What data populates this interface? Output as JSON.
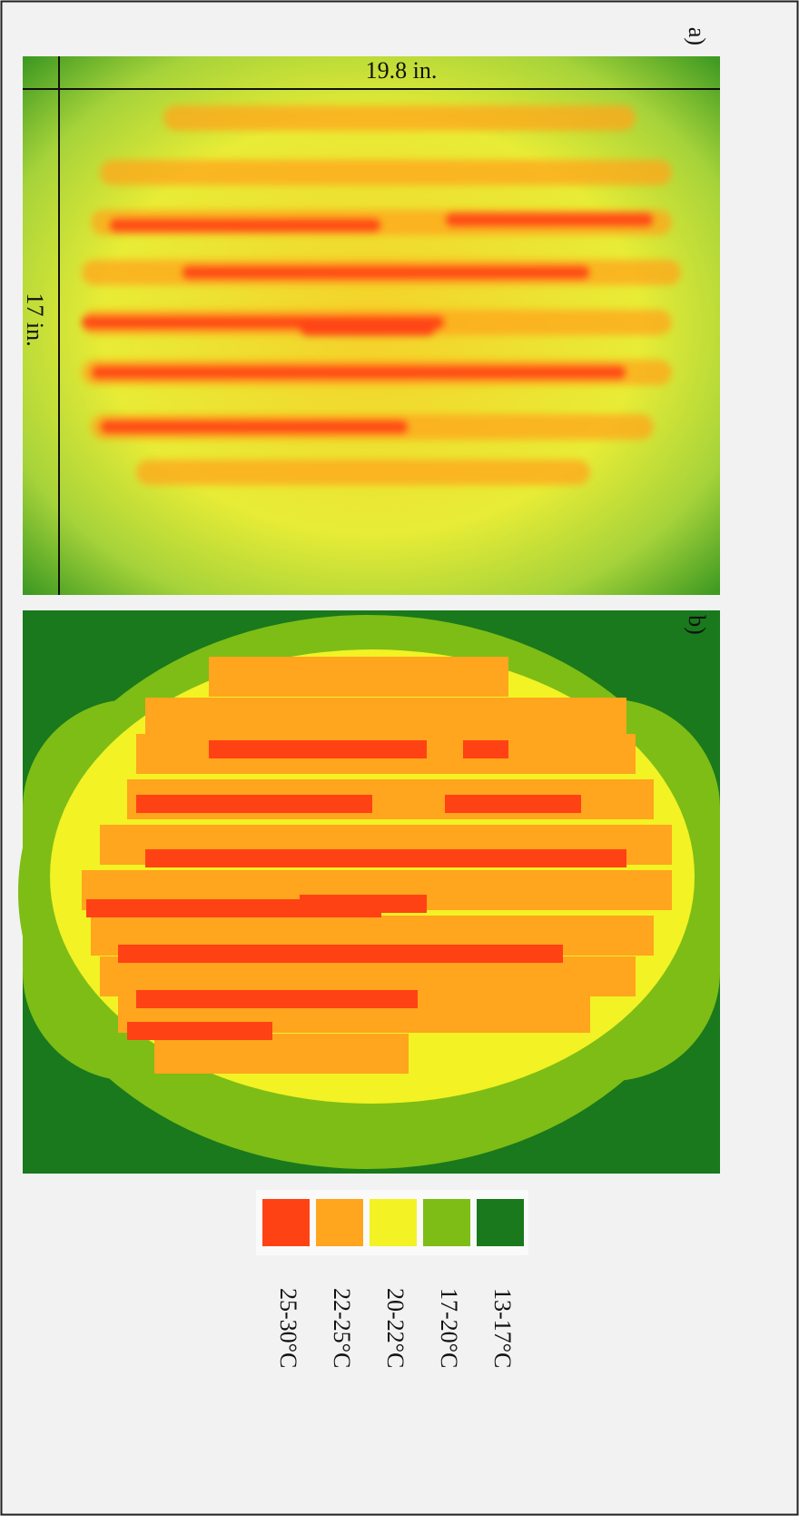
{
  "panels": [
    {
      "label": "a)",
      "width_label": "19.8 in.",
      "height_label": "17 in."
    },
    {
      "label": "b)"
    }
  ],
  "legend": [
    {
      "label": "25-30°C",
      "color": "#ff4214"
    },
    {
      "label": "22-25°C",
      "color": "#ffa51e"
    },
    {
      "label": "20-22°C",
      "color": "#f2f224"
    },
    {
      "label": "17-20°C",
      "color": "#7ebd16"
    },
    {
      "label": "13-17°C",
      "color": "#19791c"
    }
  ]
}
